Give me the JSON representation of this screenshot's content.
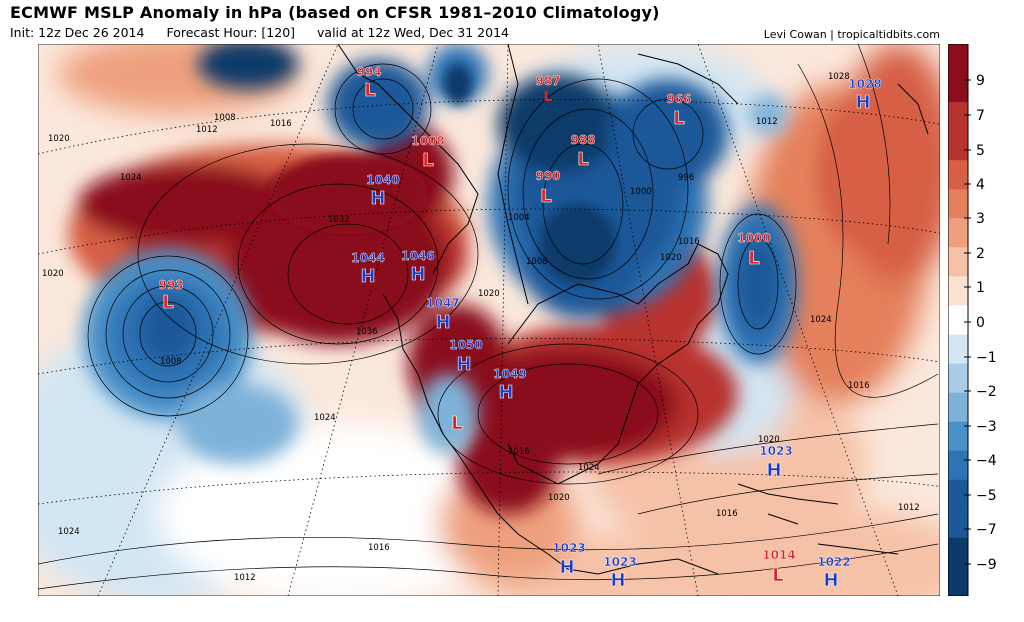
{
  "header": {
    "title": "ECMWF MSLP Anomaly in hPa (based on CFSR 1981–2010 Climatology)",
    "init": "Init: 12z Dec 26 2014",
    "forecast_hour": "Forecast Hour: [120]",
    "valid": "valid at 12z Wed, Dec 31 2014",
    "credit": "Levi Cowan | tropicaltidbits.com"
  },
  "colors": {
    "neg9": "#0c3a6b",
    "neg7": "#1d5899",
    "neg5": "#2e73b5",
    "neg4": "#4a91c8",
    "neg3": "#7fb2d9",
    "neg2": "#a9cde8",
    "neg1": "#d3e6f3",
    "zero": "#ffffff",
    "pos1": "#fbe2d3",
    "pos2": "#f6c2a7",
    "pos3": "#eea07e",
    "pos4": "#e4805c",
    "pos5": "#d65f44",
    "pos7": "#b8332f",
    "pos9": "#8a0e1c",
    "high_label": "#1a3cc8",
    "low_label": "#dd2020"
  },
  "legend": {
    "labels": [
      "9",
      "7",
      "5",
      "4",
      "3",
      "2",
      "1",
      "0",
      "−1",
      "−2",
      "−3",
      "−4",
      "−5",
      "−7",
      "−9"
    ]
  },
  "pressure_centers": [
    {
      "type": "L",
      "value": "994"
    },
    {
      "type": "L",
      "value": "987"
    },
    {
      "type": "L",
      "value": "966"
    },
    {
      "type": "H",
      "value": "1028"
    },
    {
      "type": "L",
      "value": "1008"
    },
    {
      "type": "L",
      "value": "988"
    },
    {
      "type": "L",
      "value": "990"
    },
    {
      "type": "H",
      "value": "1040"
    },
    {
      "type": "L",
      "value": "1000"
    },
    {
      "type": "H",
      "value": "1044"
    },
    {
      "type": "H",
      "value": "1046"
    },
    {
      "type": "L",
      "value": "993"
    },
    {
      "type": "H",
      "value": "1047"
    },
    {
      "type": "H",
      "value": "1050"
    },
    {
      "type": "H",
      "value": "1049"
    },
    {
      "type": "L",
      "value": ""
    },
    {
      "type": "H",
      "value": "1023"
    },
    {
      "type": "H",
      "value": "1023"
    },
    {
      "type": "H",
      "value": "1023"
    },
    {
      "type": "L",
      "value": "1014"
    },
    {
      "type": "H",
      "value": "1022"
    }
  ],
  "isobar_labels": [
    "1020",
    "1012",
    "1008",
    "1024",
    "1032",
    "1036",
    "1016",
    "1008",
    "1000",
    "996",
    "1004",
    "1024",
    "1020",
    "1016",
    "1020",
    "1016",
    "1012",
    "1024",
    "1012",
    "1028",
    "1020",
    "1024",
    "1016",
    "1012",
    "1008",
    "1024",
    "1016",
    "1020",
    "1016",
    "1020"
  ]
}
